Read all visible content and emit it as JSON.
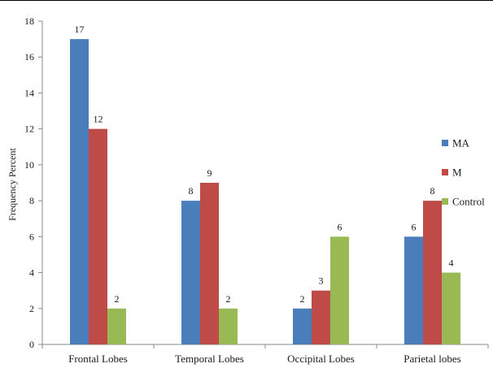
{
  "chart_data": {
    "type": "bar",
    "categories": [
      "Frontal Lobes",
      "Temporal Lobes",
      "Occipital Lobes",
      "Parietal lobes"
    ],
    "series": [
      {
        "name": "MA",
        "color": "#4a7ebb",
        "values": [
          17,
          8,
          2,
          6
        ]
      },
      {
        "name": "M",
        "color": "#be4b48",
        "values": [
          12,
          9,
          3,
          8
        ]
      },
      {
        "name": "Control",
        "color": "#98b954",
        "values": [
          2,
          2,
          6,
          4
        ]
      }
    ],
    "ylabel": "Frequency Percent",
    "xlabel": "",
    "title": "",
    "ylim": [
      0,
      18
    ],
    "yticks": [
      0,
      2,
      4,
      6,
      8,
      10,
      12,
      14,
      16,
      18
    ],
    "grid": false,
    "legend_position": "right"
  }
}
